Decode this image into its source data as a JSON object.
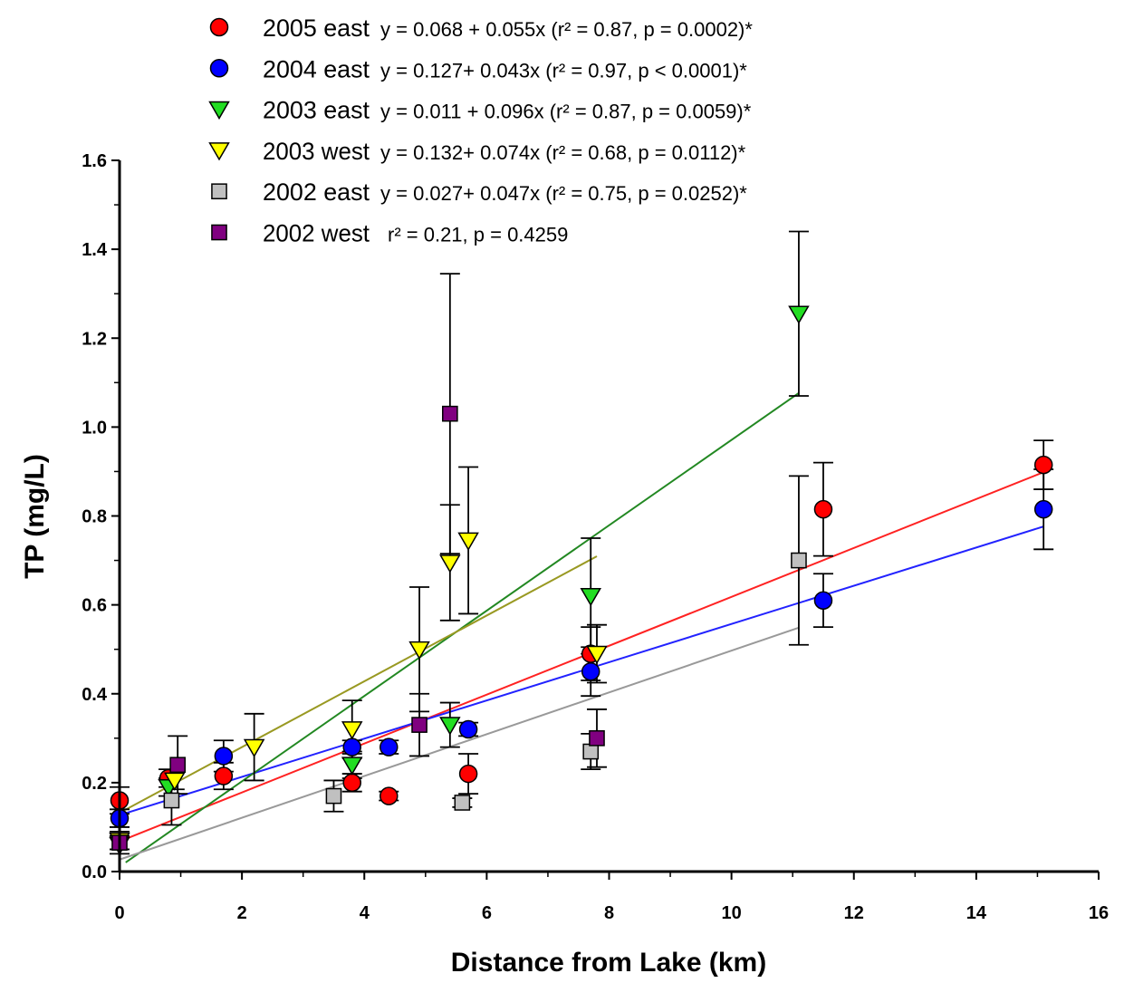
{
  "chart_data": {
    "type": "scatter",
    "xlabel": "Distance from Lake (km)",
    "ylabel": "TP (mg/L)",
    "xlim": [
      0,
      16
    ],
    "ylim": [
      0,
      1.6
    ],
    "x_ticks": [
      "0",
      "2",
      "4",
      "6",
      "8",
      "10",
      "12",
      "14",
      "16"
    ],
    "y_ticks": [
      "0.0",
      "0.2",
      "0.4",
      "0.6",
      "0.8",
      "1.0",
      "1.2",
      "1.4",
      "1.6"
    ],
    "grid": false,
    "legend_position": "top-left",
    "series": [
      {
        "name": "2005 east",
        "stats": "y = 0.068 + 0.055x  (r² = 0.87, p = 0.0002)*",
        "marker": "circle",
        "color": "#ff0000",
        "line_color": "#ff2222",
        "fit": {
          "intercept": 0.068,
          "slope": 0.055,
          "x_range": [
            0,
            15.1
          ]
        },
        "points": [
          {
            "x": 0,
            "y": 0.16,
            "err": 0.03
          },
          {
            "x": 0.8,
            "y": 0.21,
            "err": 0.02
          },
          {
            "x": 1.7,
            "y": 0.215,
            "err": 0.03
          },
          {
            "x": 3.8,
            "y": 0.2,
            "err": 0.02
          },
          {
            "x": 4.4,
            "y": 0.17,
            "err": 0.01
          },
          {
            "x": 5.7,
            "y": 0.22,
            "err": 0.045
          },
          {
            "x": 7.7,
            "y": 0.49,
            "err": 0.06
          },
          {
            "x": 11.5,
            "y": 0.815,
            "err": 0.105
          },
          {
            "x": 15.1,
            "y": 0.915,
            "err": 0.055
          }
        ]
      },
      {
        "name": "2004 east",
        "stats": "y = 0.127+ 0.043x  (r² = 0.97,  p < 0.0001)*",
        "marker": "circle",
        "color": "#0000ff",
        "line_color": "#2222ff",
        "fit": {
          "intercept": 0.127,
          "slope": 0.043,
          "x_range": [
            0,
            15.1
          ]
        },
        "points": [
          {
            "x": 0,
            "y": 0.12,
            "err": 0.02
          },
          {
            "x": 1.7,
            "y": 0.26,
            "err": 0.035
          },
          {
            "x": 3.8,
            "y": 0.28,
            "err": 0.015
          },
          {
            "x": 4.4,
            "y": 0.28,
            "err": 0.015
          },
          {
            "x": 5.7,
            "y": 0.32,
            "err": 0.015
          },
          {
            "x": 7.7,
            "y": 0.45,
            "err": 0.055
          },
          {
            "x": 11.5,
            "y": 0.61,
            "err": 0.06
          },
          {
            "x": 15.1,
            "y": 0.815,
            "err": 0.09
          }
        ]
      },
      {
        "name": "2003 east",
        "stats": "y = 0.011 + 0.096x  (r² = 0.87, p = 0.0059)*",
        "marker": "triangle-down",
        "color": "#22dd22",
        "line_color": "#228822",
        "fit": {
          "intercept": 0.011,
          "slope": 0.096,
          "x_range": [
            0.1,
            11.1
          ]
        },
        "points": [
          {
            "x": 0,
            "y": 0.06,
            "err": 0.02
          },
          {
            "x": 0.8,
            "y": 0.19,
            "err": 0.02
          },
          {
            "x": 3.8,
            "y": 0.24,
            "err": 0.03
          },
          {
            "x": 5.4,
            "y": 0.33,
            "err": 0.05
          },
          {
            "x": 7.7,
            "y": 0.62,
            "err": 0.13
          },
          {
            "x": 11.1,
            "y": 1.255,
            "err": 0.185
          }
        ]
      },
      {
        "name": "2003 west",
        "stats": "y = 0.132+ 0.074x  (r² = 0.68, p = 0.0112)*",
        "marker": "triangle-down",
        "color": "#ffff00",
        "line_color": "#999922",
        "fit": {
          "intercept": 0.132,
          "slope": 0.074,
          "x_range": [
            0,
            7.8
          ]
        },
        "points": [
          {
            "x": 0,
            "y": 0.07,
            "err": 0.02
          },
          {
            "x": 0.9,
            "y": 0.205,
            "err": 0.02
          },
          {
            "x": 2.2,
            "y": 0.28,
            "err": 0.075
          },
          {
            "x": 3.8,
            "y": 0.32,
            "err": 0.065
          },
          {
            "x": 4.9,
            "y": 0.5,
            "err": 0.14
          },
          {
            "x": 5.4,
            "y": 0.695,
            "err": 0.13
          },
          {
            "x": 5.7,
            "y": 0.745,
            "err": 0.165
          },
          {
            "x": 7.8,
            "y": 0.49,
            "err": 0.065
          }
        ]
      },
      {
        "name": "2002 east",
        "stats": "y = 0.027+ 0.047x (r² = 0.75, p = 0.0252)*",
        "marker": "square",
        "color": "#c0c0c0",
        "line_color": "#999999",
        "fit": {
          "intercept": 0.027,
          "slope": 0.047,
          "x_range": [
            0,
            11.1
          ]
        },
        "points": [
          {
            "x": 0.85,
            "y": 0.16,
            "err": 0.055
          },
          {
            "x": 3.5,
            "y": 0.17,
            "err": 0.035
          },
          {
            "x": 5.6,
            "y": 0.155,
            "err": 0.01
          },
          {
            "x": 7.7,
            "y": 0.27,
            "err": 0.04
          },
          {
            "x": 11.1,
            "y": 0.7,
            "err": 0.19
          }
        ]
      },
      {
        "name": "2002 west",
        "stats": "r² = 0.21, p = 0.4259",
        "marker": "square",
        "color": "#800080",
        "points": [
          {
            "x": 0,
            "y": 0.065,
            "err": 0.015
          },
          {
            "x": 0.95,
            "y": 0.24,
            "err": 0.065
          },
          {
            "x": 4.9,
            "y": 0.33,
            "err": 0.07
          },
          {
            "x": 5.4,
            "y": 1.03,
            "err": 0.315
          },
          {
            "x": 7.8,
            "y": 0.3,
            "err": 0.065
          }
        ]
      }
    ]
  }
}
